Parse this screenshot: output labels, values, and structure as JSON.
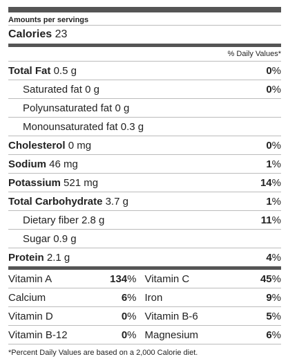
{
  "header": {
    "amounts": "Amounts per servings"
  },
  "calories": {
    "label": "Calories",
    "value": "23"
  },
  "dv_header": "% Daily Values*",
  "nutrients": [
    {
      "name": "Total Fat",
      "amount": "0.5 g",
      "dv": "0",
      "bold": true,
      "indent": false
    },
    {
      "name": "Saturated fat",
      "amount": "0 g",
      "dv": "0",
      "bold": false,
      "indent": true
    },
    {
      "name": "Polyunsaturated fat",
      "amount": "0 g",
      "dv": "",
      "bold": false,
      "indent": true
    },
    {
      "name": "Monounsaturated fat",
      "amount": "0.3 g",
      "dv": "",
      "bold": false,
      "indent": true
    },
    {
      "name": "Cholesterol",
      "amount": "0 mg",
      "dv": "0",
      "bold": true,
      "indent": false
    },
    {
      "name": "Sodium",
      "amount": "46 mg",
      "dv": "1",
      "bold": true,
      "indent": false
    },
    {
      "name": "Potassium",
      "amount": "521 mg",
      "dv": "14",
      "bold": true,
      "indent": false
    },
    {
      "name": "Total Carbohydrate",
      "amount": "3.7 g",
      "dv": "1",
      "bold": true,
      "indent": false
    },
    {
      "name": "Dietary fiber",
      "amount": "2.8 g",
      "dv": "11",
      "bold": false,
      "indent": true
    },
    {
      "name": "Sugar",
      "amount": "0.9 g",
      "dv": "",
      "bold": false,
      "indent": true
    },
    {
      "name": "Protein",
      "amount": "2.1 g",
      "dv": "4",
      "bold": true,
      "indent": false
    }
  ],
  "vitamins": [
    [
      {
        "name": "Vitamin A",
        "dv": "134"
      },
      {
        "name": "Vitamin C",
        "dv": "45"
      }
    ],
    [
      {
        "name": "Calcium",
        "dv": "6"
      },
      {
        "name": "Iron",
        "dv": "9"
      }
    ],
    [
      {
        "name": "Vitamin D",
        "dv": "0"
      },
      {
        "name": "Vitamin B-6",
        "dv": "5"
      }
    ],
    [
      {
        "name": "Vitamin B-12",
        "dv": "0"
      },
      {
        "name": "Magnesium",
        "dv": "6"
      }
    ]
  ],
  "footnote": "*Percent Daily Values are based on a 2,000 Calorie diet.",
  "colors": {
    "bar": "#555555",
    "divider": "#bbbbbb",
    "text": "#222222"
  }
}
